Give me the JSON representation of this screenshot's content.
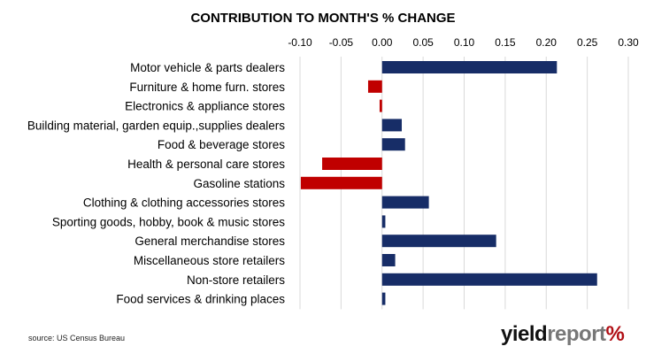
{
  "title": "CONTRIBUTION TO MONTH'S % CHANGE",
  "source": "source: US Census Bureau",
  "logo": {
    "part1": "yield",
    "part2": "report",
    "symbol": "%"
  },
  "colors": {
    "positive": "#172d67",
    "negative": "#c00000",
    "grid": "#d9d9d9"
  },
  "chart_data": {
    "type": "bar",
    "orientation": "horizontal",
    "title": "CONTRIBUTION TO MONTH'S % CHANGE",
    "categories": [
      "Motor vehicle & parts dealers",
      "Furniture & home furn. stores",
      "Electronics & appliance stores",
      "Building material, garden equip.,supplies dealers",
      "Food & beverage stores",
      "Health & personal care stores",
      "Gasoline stations",
      "Clothing & clothing accessories stores",
      "Sporting goods, hobby, book & music stores",
      "General merchandise stores",
      "Miscellaneous store retailers",
      "Non-store retailers",
      "Food services & drinking places"
    ],
    "values": [
      0.213,
      -0.017,
      -0.003,
      0.024,
      0.028,
      -0.073,
      -0.099,
      0.057,
      0.004,
      0.139,
      0.016,
      0.262,
      0.004
    ],
    "xlim": [
      -0.1,
      0.3
    ],
    "ticks": [
      "-0.10",
      "-0.05",
      "0.00",
      "0.05",
      "0.10",
      "0.15",
      "0.20",
      "0.25",
      "0.30"
    ],
    "tick_values": [
      -0.1,
      -0.05,
      0.0,
      0.05,
      0.1,
      0.15,
      0.2,
      0.25,
      0.3
    ],
    "axis_position": "top",
    "grid": true,
    "legend": "none"
  }
}
